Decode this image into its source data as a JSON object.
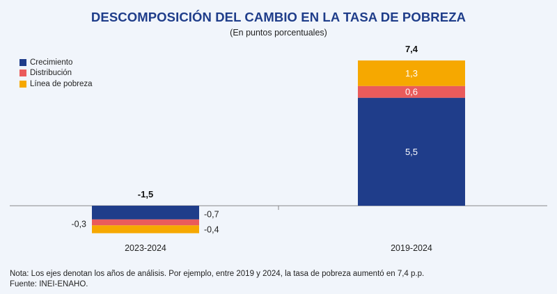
{
  "header": {
    "title": "DESCOMPOSICIÓN DEL CAMBIO EN LA TASA DE POBREZA",
    "subtitle": "(En puntos porcentuales)"
  },
  "colors": {
    "title": "#1f3d8a",
    "crecimiento": "#1f3d8a",
    "distribucion": "#ea5b5b",
    "linea_pobreza": "#f6a800",
    "background": "#f1f5fb"
  },
  "chart_data": {
    "type": "bar",
    "stacked": true,
    "title": "DESCOMPOSICIÓN DEL CAMBIO EN LA TASA DE POBREZA",
    "subtitle": "(En puntos porcentuales)",
    "categories": [
      "2023-2024",
      "2019-2024"
    ],
    "series": [
      {
        "name": "Crecimiento",
        "values": [
          -0.7,
          5.5
        ],
        "labels": [
          "-0,7",
          "5,5"
        ]
      },
      {
        "name": "Distribución",
        "values": [
          -0.3,
          0.6
        ],
        "labels": [
          "-0,3",
          "0,6"
        ]
      },
      {
        "name": "Línea de pobreza",
        "values": [
          -0.4,
          1.3
        ],
        "labels": [
          "-0,4",
          "1,3"
        ]
      }
    ],
    "totals": [
      -1.5,
      7.4
    ],
    "total_labels": [
      "-1,5",
      "7,4"
    ],
    "xlabel": "",
    "ylabel": "",
    "legend_position": "top-left",
    "grid": false
  },
  "footer": {
    "note": "Nota: Los ejes denotan los años de análisis. Por ejemplo, entre 2019 y 2024, la tasa de pobreza aumentó en 7,4 p.p.",
    "source": "Fuente: INEI-ENAHO."
  }
}
